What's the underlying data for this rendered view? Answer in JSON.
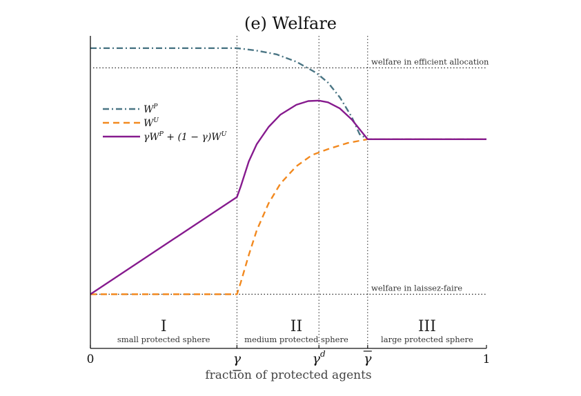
{
  "chart_data": {
    "type": "line",
    "title": "(e) Welfare",
    "xlabel": "fraction of protected agents",
    "ylabel": "",
    "xlim": [
      0,
      1
    ],
    "ylim": [
      -0.22,
      1.05
    ],
    "x_ticks": [
      {
        "value": 0,
        "label": "0"
      },
      {
        "value": 0.37,
        "label": "γ"
      },
      {
        "value": 0.577,
        "label": "γ",
        "sup": "d"
      },
      {
        "value": 0.7,
        "label": "γ"
      },
      {
        "value": 1,
        "label": "1"
      }
    ],
    "reference_lines": [
      {
        "name": "efficient",
        "y": 0.92,
        "label": "welfare in efficient allocation"
      },
      {
        "name": "laissez-faire",
        "y": 0,
        "label": "welfare in laissez-faire"
      }
    ],
    "vertical_lines": [
      0.37,
      0.577,
      0.7
    ],
    "regions": [
      {
        "numeral": "I",
        "label": "small protected sphere",
        "x": 0.185
      },
      {
        "numeral": "II",
        "label": "medium protected sphere",
        "x": 0.52
      },
      {
        "numeral": "III",
        "label": "large protected sphere",
        "x": 0.85
      }
    ],
    "legend": {
      "placement": "upper-left",
      "entries": [
        {
          "key": "WP",
          "base": "W",
          "sup": "P"
        },
        {
          "key": "WU",
          "base": "W",
          "sup": "U"
        },
        {
          "key": "mix",
          "text": "γW",
          "sup1": "P",
          "text2": " + (1 − γ)W",
          "sup2": "U"
        }
      ]
    },
    "series": [
      {
        "key": "WP",
        "color": "#4a7584",
        "dash": "dashdot",
        "x": [
          0,
          0.37,
          0.42,
          0.47,
          0.52,
          0.57,
          0.6,
          0.63,
          0.66,
          0.68,
          0.7,
          1
        ],
        "y": [
          1.0,
          1.0,
          0.99,
          0.975,
          0.945,
          0.9,
          0.86,
          0.8,
          0.72,
          0.65,
          0.63,
          0.63
        ]
      },
      {
        "key": "WU",
        "color": "#f2891f",
        "dash": "dashed",
        "x": [
          0,
          0.37,
          0.38,
          0.4,
          0.42,
          0.45,
          0.48,
          0.52,
          0.56,
          0.6,
          0.65,
          0.7,
          1
        ],
        "y": [
          0,
          0,
          0.05,
          0.16,
          0.26,
          0.37,
          0.45,
          0.52,
          0.566,
          0.59,
          0.615,
          0.63,
          0.63
        ]
      },
      {
        "key": "mix",
        "color": "#861a8e",
        "dash": "solid",
        "x": [
          0,
          0.37,
          0.38,
          0.4,
          0.42,
          0.45,
          0.48,
          0.52,
          0.55,
          0.577,
          0.6,
          0.63,
          0.66,
          0.7,
          1
        ],
        "y": [
          0,
          0.395,
          0.44,
          0.54,
          0.61,
          0.68,
          0.73,
          0.77,
          0.785,
          0.787,
          0.78,
          0.755,
          0.71,
          0.63,
          0.63
        ]
      }
    ]
  }
}
